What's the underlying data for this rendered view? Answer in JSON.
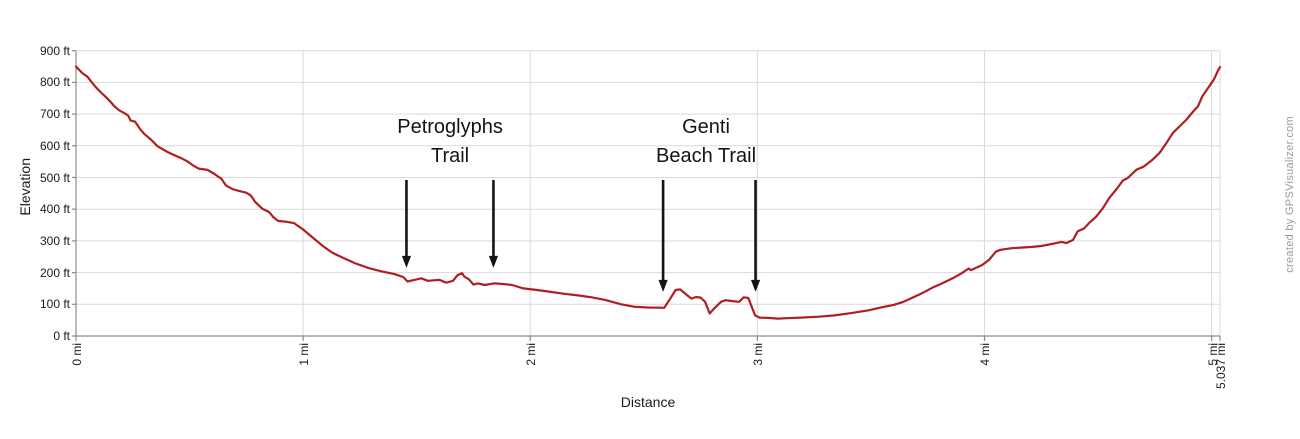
{
  "watermark": "created by GPSVisualizer.com",
  "chart_data": {
    "type": "line",
    "title": "",
    "xlabel": "Distance",
    "ylabel": "Elevation",
    "x_unit": "mi",
    "y_unit": "ft",
    "xlim": [
      0,
      5.037
    ],
    "ylim": [
      0,
      900
    ],
    "grid": true,
    "legend": "none",
    "line_color": "#b01e23",
    "grid_color": "#d9d9d9",
    "axis_color": "#8c8c8c",
    "annotation_color": "#141414",
    "x_ticks": [
      {
        "value": 0,
        "label": "0 mi"
      },
      {
        "value": 1,
        "label": "1 mi"
      },
      {
        "value": 2,
        "label": "2 mi"
      },
      {
        "value": 3,
        "label": "3 mi"
      },
      {
        "value": 4,
        "label": "4 mi"
      },
      {
        "value": 5,
        "label": "5 mi"
      },
      {
        "value": 5.037,
        "label": "5.037 mi"
      }
    ],
    "y_ticks": [
      {
        "value": 0,
        "label": "0 ft"
      },
      {
        "value": 100,
        "label": "100 ft"
      },
      {
        "value": 200,
        "label": "200 ft"
      },
      {
        "value": 300,
        "label": "300 ft"
      },
      {
        "value": 400,
        "label": "400 ft"
      },
      {
        "value": 500,
        "label": "500 ft"
      },
      {
        "value": 600,
        "label": "600 ft"
      },
      {
        "value": 700,
        "label": "700 ft"
      },
      {
        "value": 800,
        "label": "800 ft"
      },
      {
        "value": 900,
        "label": "900 ft"
      }
    ],
    "annotations": [
      {
        "line1": "Petroglyphs",
        "line2": "Trail",
        "label_center_mi": 1.647,
        "arrow_start_ft": 492,
        "arrows": [
          {
            "mi": 1.455,
            "tip_ft": 215
          },
          {
            "mi": 1.838,
            "tip_ft": 215
          }
        ]
      },
      {
        "line1": "Genti",
        "line2": "Beach Trail",
        "label_center_mi": 2.774,
        "arrow_start_ft": 492,
        "arrows": [
          {
            "mi": 2.585,
            "tip_ft": 139
          },
          {
            "mi": 2.992,
            "tip_ft": 139
          }
        ]
      }
    ],
    "series": [
      {
        "name": "Elevation profile",
        "points": [
          [
            0.0,
            850
          ],
          [
            0.03,
            828
          ],
          [
            0.05,
            818
          ],
          [
            0.07,
            800
          ],
          [
            0.09,
            783
          ],
          [
            0.11,
            768
          ],
          [
            0.13,
            755
          ],
          [
            0.15,
            740
          ],
          [
            0.17,
            724
          ],
          [
            0.19,
            712
          ],
          [
            0.22,
            700
          ],
          [
            0.23,
            695
          ],
          [
            0.24,
            680
          ],
          [
            0.26,
            676
          ],
          [
            0.28,
            655
          ],
          [
            0.3,
            638
          ],
          [
            0.33,
            620
          ],
          [
            0.35,
            605
          ],
          [
            0.36,
            598
          ],
          [
            0.38,
            590
          ],
          [
            0.41,
            578
          ],
          [
            0.44,
            568
          ],
          [
            0.46,
            562
          ],
          [
            0.49,
            551
          ],
          [
            0.52,
            536
          ],
          [
            0.54,
            528
          ],
          [
            0.58,
            524
          ],
          [
            0.61,
            511
          ],
          [
            0.64,
            496
          ],
          [
            0.66,
            475
          ],
          [
            0.69,
            463
          ],
          [
            0.72,
            457
          ],
          [
            0.75,
            452
          ],
          [
            0.77,
            443
          ],
          [
            0.79,
            422
          ],
          [
            0.82,
            402
          ],
          [
            0.85,
            391
          ],
          [
            0.87,
            374
          ],
          [
            0.89,
            363
          ],
          [
            0.93,
            360
          ],
          [
            0.96,
            356
          ],
          [
            1.0,
            336
          ],
          [
            1.04,
            312
          ],
          [
            1.09,
            282
          ],
          [
            1.13,
            262
          ],
          [
            1.18,
            245
          ],
          [
            1.23,
            229
          ],
          [
            1.29,
            214
          ],
          [
            1.35,
            203
          ],
          [
            1.4,
            196
          ],
          [
            1.44,
            186
          ],
          [
            1.46,
            172
          ],
          [
            1.49,
            177
          ],
          [
            1.52,
            182
          ],
          [
            1.55,
            174
          ],
          [
            1.6,
            177
          ],
          [
            1.63,
            168
          ],
          [
            1.66,
            174
          ],
          [
            1.68,
            192
          ],
          [
            1.7,
            198
          ],
          [
            1.71,
            187
          ],
          [
            1.73,
            179
          ],
          [
            1.75,
            162
          ],
          [
            1.77,
            166
          ],
          [
            1.8,
            161
          ],
          [
            1.84,
            166
          ],
          [
            1.88,
            164
          ],
          [
            1.92,
            161
          ],
          [
            1.97,
            150
          ],
          [
            2.03,
            145
          ],
          [
            2.09,
            139
          ],
          [
            2.15,
            133
          ],
          [
            2.21,
            128
          ],
          [
            2.27,
            122
          ],
          [
            2.33,
            114
          ],
          [
            2.4,
            100
          ],
          [
            2.46,
            92
          ],
          [
            2.52,
            90
          ],
          [
            2.59,
            89
          ],
          [
            2.62,
            122
          ],
          [
            2.64,
            145
          ],
          [
            2.66,
            147
          ],
          [
            2.69,
            129
          ],
          [
            2.71,
            118
          ],
          [
            2.73,
            123
          ],
          [
            2.75,
            121
          ],
          [
            2.77,
            108
          ],
          [
            2.79,
            71
          ],
          [
            2.81,
            87
          ],
          [
            2.84,
            108
          ],
          [
            2.86,
            113
          ],
          [
            2.89,
            110
          ],
          [
            2.92,
            108
          ],
          [
            2.94,
            122
          ],
          [
            2.96,
            120
          ],
          [
            2.97,
            102
          ],
          [
            2.99,
            65
          ],
          [
            3.01,
            58
          ],
          [
            3.05,
            57
          ],
          [
            3.09,
            55
          ],
          [
            3.13,
            56
          ],
          [
            3.19,
            58
          ],
          [
            3.27,
            61
          ],
          [
            3.34,
            65
          ],
          [
            3.41,
            72
          ],
          [
            3.49,
            81
          ],
          [
            3.55,
            91
          ],
          [
            3.6,
            98
          ],
          [
            3.64,
            107
          ],
          [
            3.68,
            120
          ],
          [
            3.72,
            133
          ],
          [
            3.77,
            152
          ],
          [
            3.81,
            165
          ],
          [
            3.86,
            182
          ],
          [
            3.9,
            198
          ],
          [
            3.93,
            213
          ],
          [
            3.94,
            208
          ],
          [
            3.99,
            224
          ],
          [
            4.02,
            240
          ],
          [
            4.05,
            266
          ],
          [
            4.07,
            272
          ],
          [
            4.12,
            277
          ],
          [
            4.16,
            279
          ],
          [
            4.21,
            281
          ],
          [
            4.25,
            284
          ],
          [
            4.3,
            291
          ],
          [
            4.34,
            297
          ],
          [
            4.36,
            293
          ],
          [
            4.39,
            303
          ],
          [
            4.41,
            330
          ],
          [
            4.44,
            340
          ],
          [
            4.46,
            356
          ],
          [
            4.49,
            375
          ],
          [
            4.52,
            402
          ],
          [
            4.55,
            436
          ],
          [
            4.58,
            462
          ],
          [
            4.61,
            491
          ],
          [
            4.63,
            498
          ],
          [
            4.67,
            525
          ],
          [
            4.7,
            534
          ],
          [
            4.74,
            556
          ],
          [
            4.77,
            577
          ],
          [
            4.8,
            608
          ],
          [
            4.83,
            641
          ],
          [
            4.86,
            662
          ],
          [
            4.89,
            683
          ],
          [
            4.92,
            709
          ],
          [
            4.94,
            725
          ],
          [
            4.96,
            757
          ],
          [
            4.98,
            778
          ],
          [
            5.01,
            809
          ],
          [
            5.03,
            840
          ],
          [
            5.037,
            848
          ]
        ]
      }
    ]
  }
}
